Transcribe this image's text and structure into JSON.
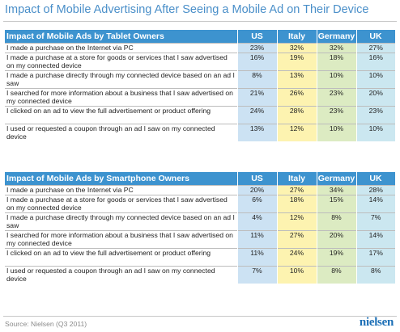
{
  "title": "Impact of Mobile Advertising After Seeing a Mobile Ad on Their Device",
  "chart_data": [
    {
      "type": "table",
      "title": "Impact of Mobile Ads by Tablet Owners",
      "columns": [
        "US",
        "Italy",
        "Germany",
        "UK"
      ],
      "rows": [
        {
          "label": "I made a purchase on the Internet via PC",
          "values": [
            "23%",
            "32%",
            "32%",
            "27%"
          ]
        },
        {
          "label": "I made a purchase at a store for goods or services that I saw advertised on my connected device",
          "values": [
            "16%",
            "19%",
            "18%",
            "16%"
          ]
        },
        {
          "label": "I made a purchase directly through my connected device based on an ad I saw",
          "values": [
            "8%",
            "13%",
            "10%",
            "10%"
          ]
        },
        {
          "label": "I searched for more information about a business that I saw advertised on my connected device",
          "values": [
            "21%",
            "26%",
            "23%",
            "20%"
          ]
        },
        {
          "label": "I clicked on an ad to view the full advertisement or product offering",
          "values": [
            "24%",
            "28%",
            "23%",
            "23%"
          ]
        },
        {
          "label": "I used or requested a coupon through an ad I saw on my connected device",
          "values": [
            "13%",
            "12%",
            "10%",
            "10%"
          ]
        }
      ]
    },
    {
      "type": "table",
      "title": "Impact of Mobile Ads by Smartphone Owners",
      "columns": [
        "US",
        "Italy",
        "Germany",
        "UK"
      ],
      "rows": [
        {
          "label": "I made a purchase on the Internet via PC",
          "values": [
            "20%",
            "27%",
            "34%",
            "28%"
          ]
        },
        {
          "label": "I made a purchase at a store for goods or services that I saw advertised on my connected device",
          "values": [
            "6%",
            "18%",
            "15%",
            "14%"
          ]
        },
        {
          "label": "I made a purchase directly through my connected device based on an ad I saw",
          "values": [
            "4%",
            "12%",
            "8%",
            "7%"
          ]
        },
        {
          "label": "I searched for more information about a business that I saw advertised on my connected device",
          "values": [
            "11%",
            "27%",
            "20%",
            "14%"
          ]
        },
        {
          "label": "I clicked on an ad to view the full advertisement or product offering",
          "values": [
            "11%",
            "24%",
            "19%",
            "17%"
          ]
        },
        {
          "label": "I used or requested a coupon through an ad I saw on my connected device",
          "values": [
            "7%",
            "10%",
            "8%",
            "8%"
          ]
        }
      ]
    }
  ],
  "source": "Source: Nielsen (Q3 2011)",
  "brand": "nielsen",
  "colors": {
    "title": "#4a8fc9",
    "header": "#3d93cf",
    "us": "#cce2f3",
    "italy": "#fdf3b0",
    "germany": "#dcebc2",
    "uk": "#cbe7f0"
  }
}
